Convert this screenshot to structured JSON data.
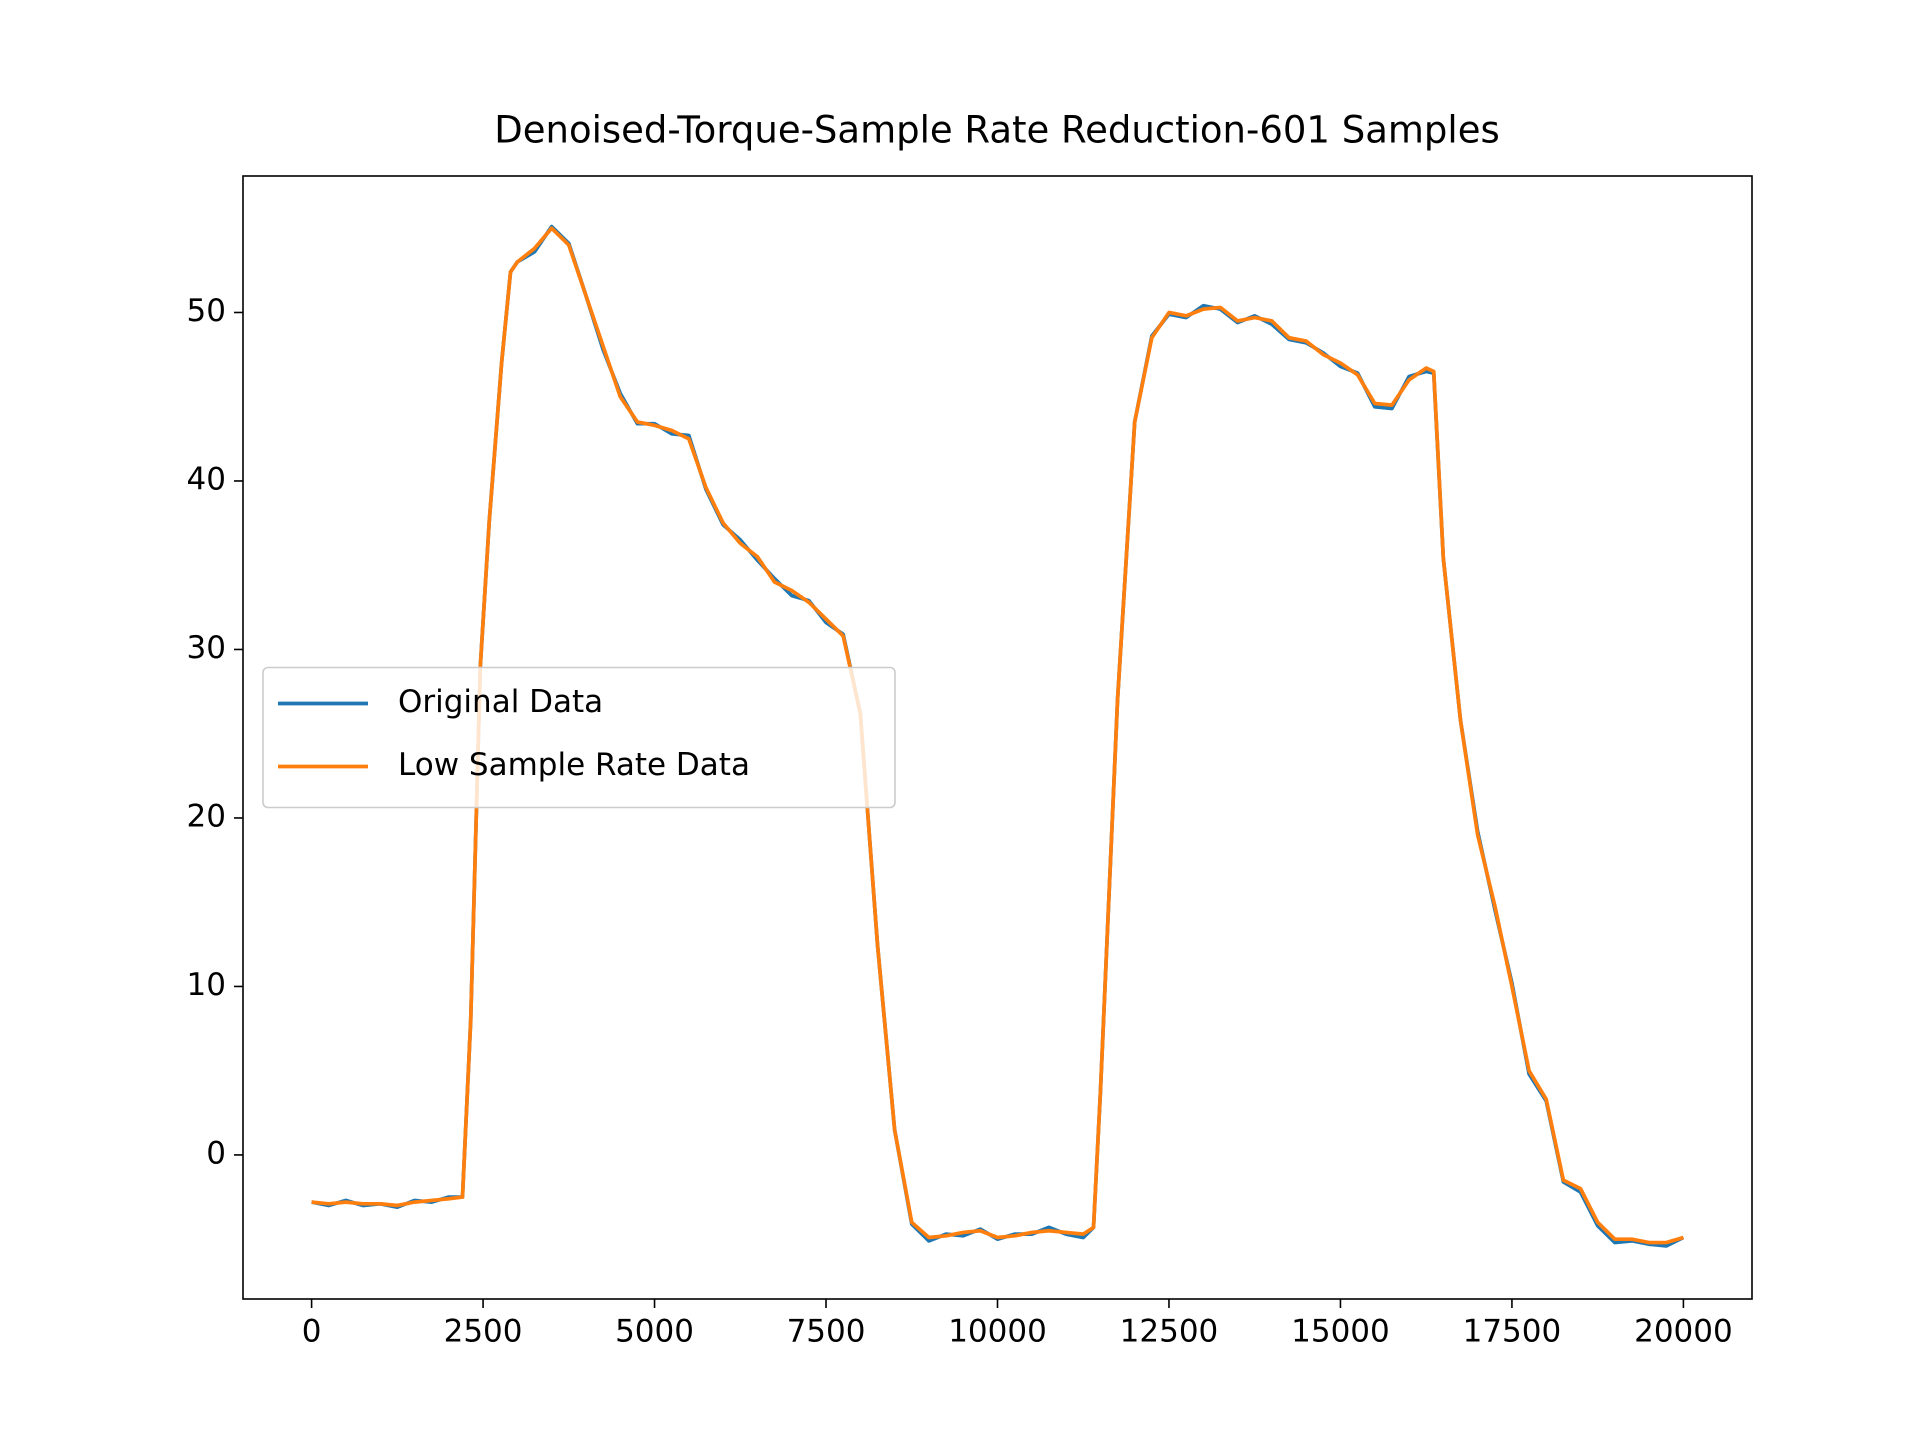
{
  "chart_data": {
    "type": "line",
    "title": "Denoised-Torque-Sample Rate Reduction-601 Samples",
    "x": [
      0,
      250,
      500,
      750,
      1000,
      1250,
      1500,
      1750,
      2000,
      2200,
      2320,
      2460,
      2590,
      2770,
      2900,
      3000,
      3250,
      3500,
      3750,
      4000,
      4250,
      4500,
      4750,
      5000,
      5250,
      5500,
      5750,
      6000,
      6250,
      6500,
      6750,
      7000,
      7250,
      7500,
      7750,
      8000,
      8250,
      8500,
      8750,
      9000,
      9250,
      9500,
      9750,
      10000,
      10250,
      10500,
      10750,
      11000,
      11250,
      11400,
      11500,
      11750,
      12000,
      12250,
      12500,
      12750,
      13000,
      13250,
      13500,
      13750,
      14000,
      14250,
      14500,
      14750,
      15000,
      15250,
      15500,
      15750,
      16000,
      16250,
      16360,
      16500,
      16750,
      17000,
      17250,
      17500,
      17750,
      18000,
      18250,
      18500,
      18750,
      19000,
      19250,
      19500,
      19750,
      20000
    ],
    "series": [
      {
        "name": "Original Data",
        "color": "#1f77b4",
        "values": [
          -2.8,
          -3.0,
          -2.7,
          -3.0,
          -2.9,
          -3.1,
          -2.7,
          -2.8,
          -2.5,
          -2.5,
          8,
          29,
          37.6,
          47,
          52.4,
          53,
          53.6,
          55.1,
          54.1,
          51,
          47.8,
          45.2,
          43.4,
          43.4,
          42.8,
          42.7,
          39.5,
          37.4,
          36.5,
          35.3,
          34.2,
          33.2,
          32.9,
          31.6,
          30.9,
          26.2,
          12.5,
          1.5,
          -4.1,
          -5.1,
          -4.7,
          -4.8,
          -4.4,
          -5.0,
          -4.7,
          -4.7,
          -4.3,
          -4.7,
          -4.9,
          -4.3,
          3.7,
          27,
          43.5,
          48.6,
          49.9,
          49.7,
          50.4,
          50.2,
          49.4,
          49.8,
          49.3,
          48.4,
          48.2,
          47.6,
          46.8,
          46.4,
          44.4,
          44.3,
          46.2,
          46.5,
          46.4,
          35.4,
          25.8,
          19.2,
          14.6,
          10.2,
          4.8,
          3.2,
          -1.6,
          -2.2,
          -4.2,
          -5.2,
          -5.1,
          -5.3,
          -5.4,
          -4.9
        ]
      },
      {
        "name": "Low Sample Rate Data",
        "color": "#ff7f0e",
        "values": [
          -2.8,
          -2.9,
          -2.8,
          -2.9,
          -2.9,
          -3.0,
          -2.8,
          -2.7,
          -2.6,
          -2.5,
          8,
          29,
          37.6,
          47,
          52.4,
          53,
          53.8,
          55,
          54,
          51,
          48,
          45,
          43.5,
          43.3,
          43,
          42.5,
          39.6,
          37.5,
          36.3,
          35.5,
          34,
          33.5,
          32.8,
          31.8,
          30.8,
          26.2,
          12.5,
          1.5,
          -4,
          -4.9,
          -4.8,
          -4.6,
          -4.5,
          -4.9,
          -4.8,
          -4.6,
          -4.5,
          -4.6,
          -4.7,
          -4.3,
          3.7,
          27,
          43.5,
          48.5,
          50,
          49.8,
          50.2,
          50.3,
          49.5,
          49.7,
          49.5,
          48.5,
          48.3,
          47.5,
          47,
          46.3,
          44.6,
          44.5,
          46,
          46.7,
          46.5,
          35.4,
          25.8,
          19,
          14.8,
          10,
          5,
          3.3,
          -1.5,
          -2,
          -4,
          -5,
          -5,
          -5.2,
          -5.2,
          -4.9
        ]
      }
    ],
    "xlim": [
      -1000,
      21000
    ],
    "ylim": [
      -8.55,
      58.1
    ],
    "xticks": [
      0,
      2500,
      5000,
      7500,
      10000,
      12500,
      15000,
      17500,
      20000
    ],
    "yticks": [
      0,
      10,
      20,
      30,
      40,
      50
    ],
    "legend": "center left"
  }
}
